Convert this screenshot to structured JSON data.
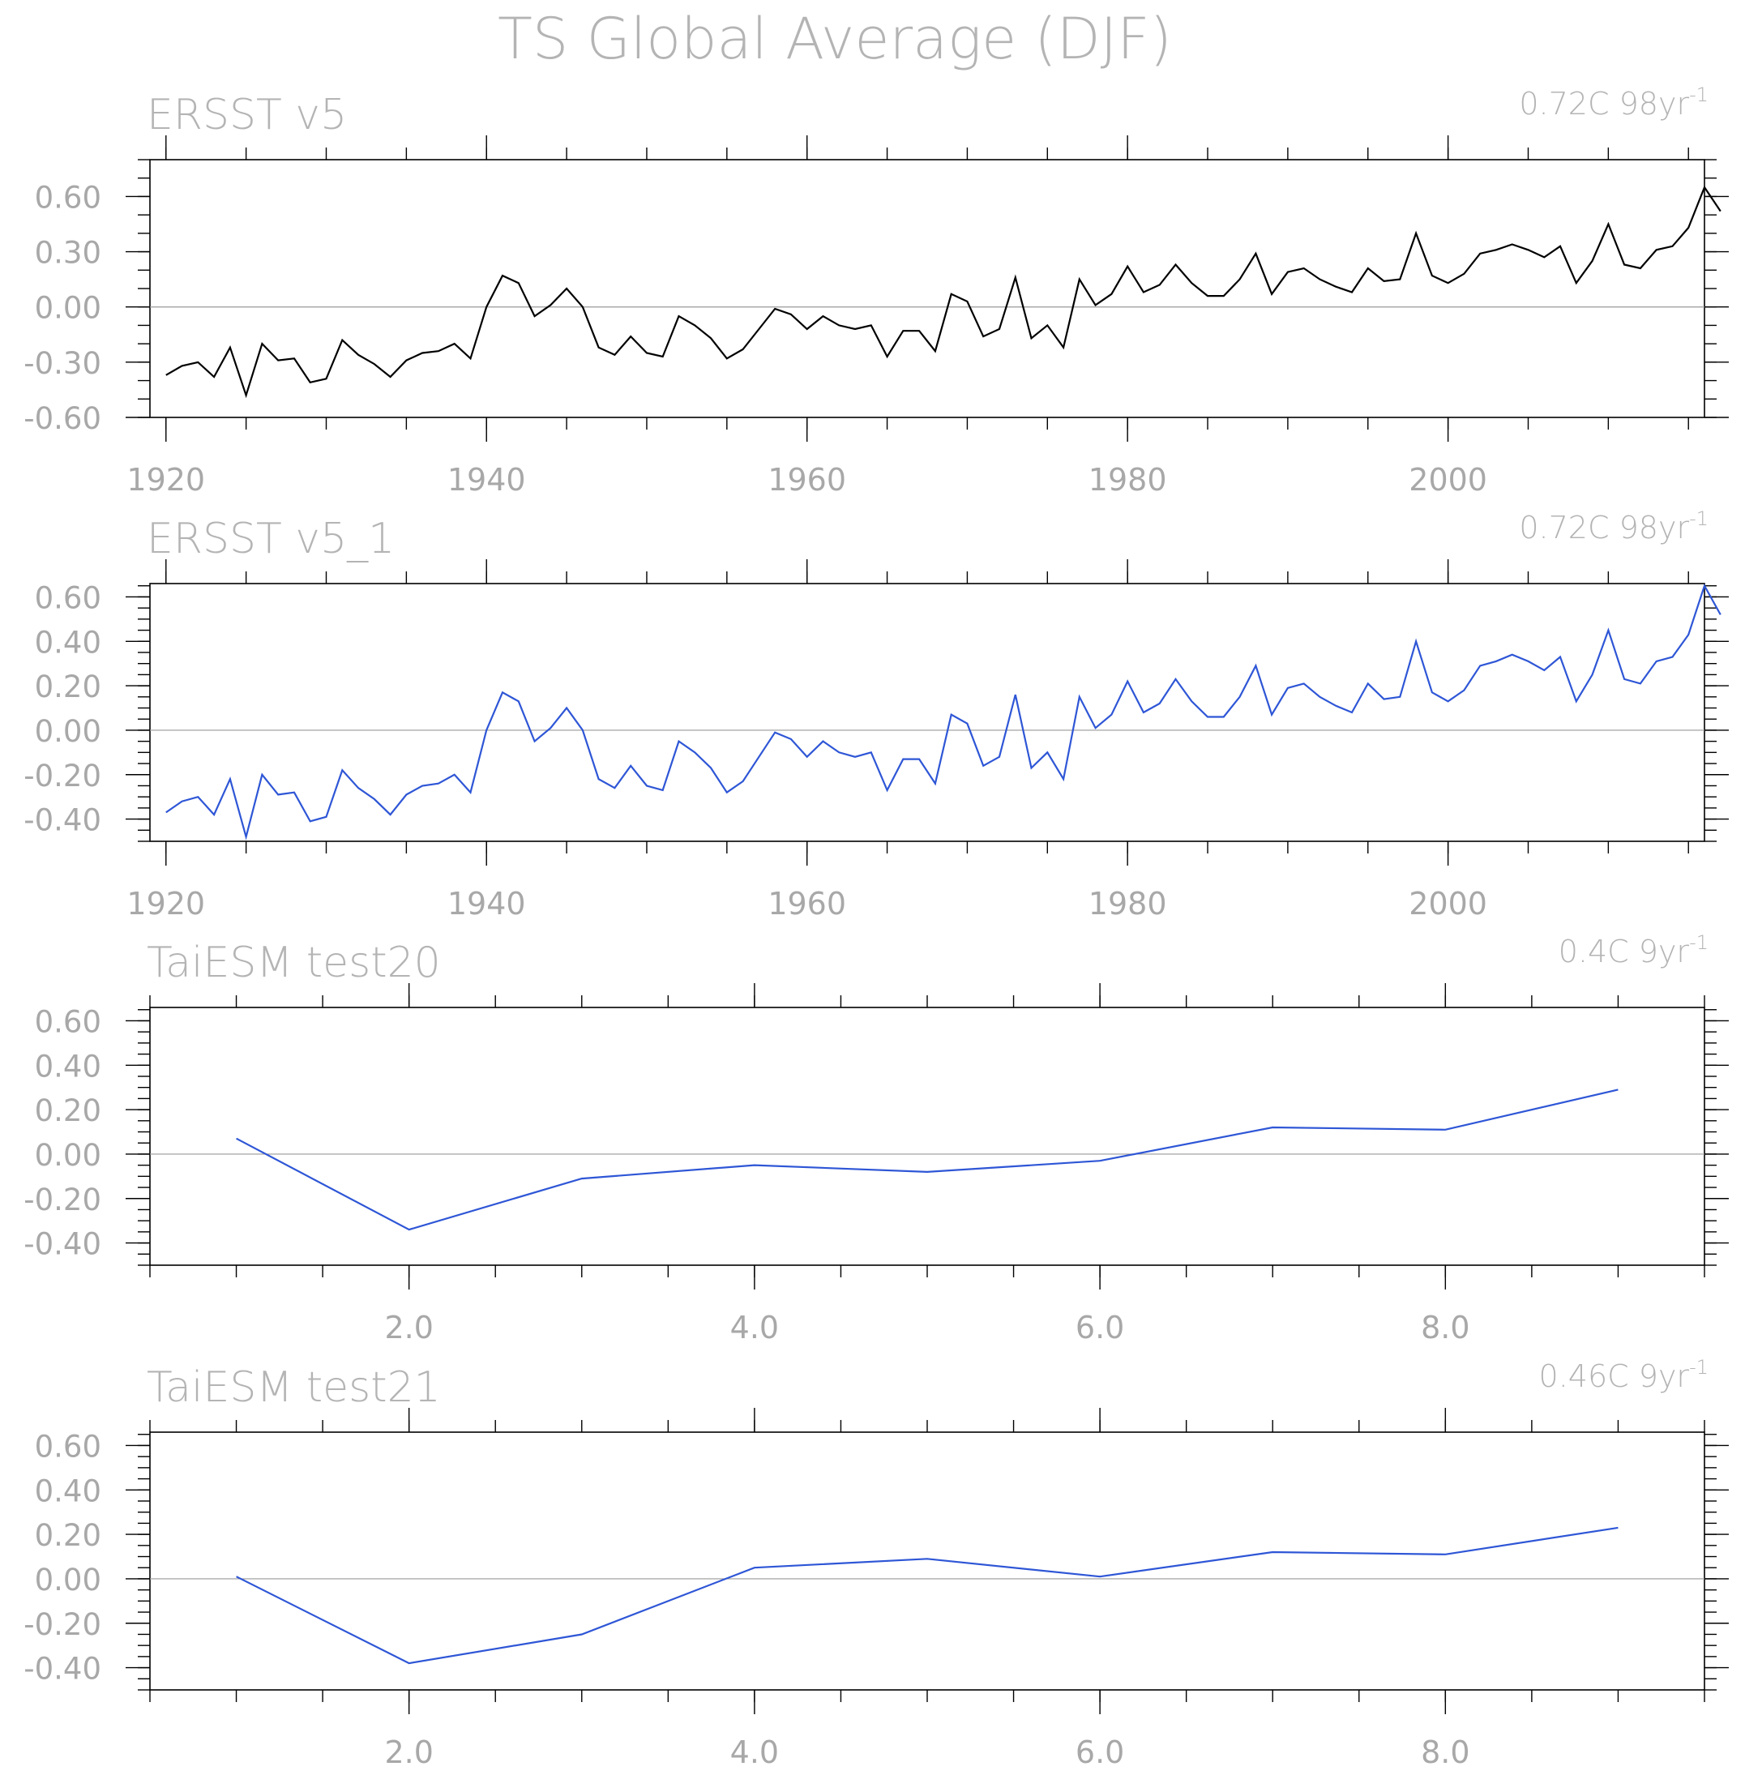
{
  "figure": {
    "title": "TS Global Average (DJF)"
  },
  "colors": {
    "black": "#000000",
    "blue": "#2e56d6",
    "zero": "#999999",
    "axis": "#000000",
    "text": "#a8a8a8"
  },
  "chart_data": [
    {
      "type": "line",
      "title": "ERSST v5",
      "annotation": "0.72C 98yr",
      "annotation_sup": "-1",
      "color": "black",
      "xlim": [
        1919,
        2016
      ],
      "ylim": [
        -0.6,
        0.8
      ],
      "yticks": [
        -0.6,
        -0.3,
        0.0,
        0.3,
        0.6
      ],
      "ytick_labels": [
        "-0.60",
        "-0.30",
        "0.00",
        "0.30",
        "0.60"
      ],
      "yminor": 0.1,
      "xticks": [
        1920,
        1940,
        1960,
        1980,
        2000
      ],
      "xtick_labels": [
        "1920",
        "1940",
        "1960",
        "1980",
        "2000"
      ],
      "xminor": 5,
      "zero_line": true,
      "series": [
        {
          "x_start": 1920,
          "x_step": 1,
          "values": [
            -0.37,
            -0.32,
            -0.3,
            -0.38,
            -0.22,
            -0.48,
            -0.2,
            -0.29,
            -0.28,
            -0.41,
            -0.39,
            -0.18,
            -0.26,
            -0.31,
            -0.38,
            -0.29,
            -0.25,
            -0.24,
            -0.2,
            -0.28,
            0.0,
            0.17,
            0.13,
            -0.05,
            0.01,
            0.1,
            0.0,
            -0.22,
            -0.26,
            -0.16,
            -0.25,
            -0.27,
            -0.05,
            -0.1,
            -0.17,
            -0.28,
            -0.23,
            -0.12,
            -0.01,
            -0.04,
            -0.12,
            -0.05,
            -0.1,
            -0.12,
            -0.1,
            -0.27,
            -0.13,
            -0.13,
            -0.24,
            0.07,
            0.03,
            -0.16,
            -0.12,
            0.16,
            -0.17,
            -0.1,
            -0.22,
            0.15,
            0.01,
            0.07,
            0.22,
            0.08,
            0.12,
            0.23,
            0.13,
            0.06,
            0.06,
            0.15,
            0.29,
            0.07,
            0.19,
            0.21,
            0.15,
            0.11,
            0.08,
            0.21,
            0.14,
            0.15,
            0.4,
            0.17,
            0.13,
            0.18,
            0.29,
            0.31,
            0.34,
            0.31,
            0.27,
            0.33,
            0.13,
            0.25,
            0.45,
            0.23,
            0.21,
            0.31,
            0.33,
            0.43,
            0.65,
            0.52
          ]
        }
      ]
    },
    {
      "type": "line",
      "title": "ERSST v5_1",
      "annotation": "0.72C 98yr",
      "annotation_sup": "-1",
      "color": "blue",
      "xlim": [
        1919,
        2016
      ],
      "ylim": [
        -0.5,
        0.66
      ],
      "yticks": [
        -0.4,
        -0.2,
        0.0,
        0.2,
        0.4,
        0.6
      ],
      "ytick_labels": [
        "-0.40",
        "-0.20",
        "0.00",
        "0.20",
        "0.40",
        "0.60"
      ],
      "yminor": 0.05,
      "xticks": [
        1920,
        1940,
        1960,
        1980,
        2000
      ],
      "xtick_labels": [
        "1920",
        "1940",
        "1960",
        "1980",
        "2000"
      ],
      "xminor": 5,
      "zero_line": true,
      "series": [
        {
          "x_start": 1920,
          "x_step": 1,
          "values": [
            -0.37,
            -0.32,
            -0.3,
            -0.38,
            -0.22,
            -0.48,
            -0.2,
            -0.29,
            -0.28,
            -0.41,
            -0.39,
            -0.18,
            -0.26,
            -0.31,
            -0.38,
            -0.29,
            -0.25,
            -0.24,
            -0.2,
            -0.28,
            0.0,
            0.17,
            0.13,
            -0.05,
            0.01,
            0.1,
            0.0,
            -0.22,
            -0.26,
            -0.16,
            -0.25,
            -0.27,
            -0.05,
            -0.1,
            -0.17,
            -0.28,
            -0.23,
            -0.12,
            -0.01,
            -0.04,
            -0.12,
            -0.05,
            -0.1,
            -0.12,
            -0.1,
            -0.27,
            -0.13,
            -0.13,
            -0.24,
            0.07,
            0.03,
            -0.16,
            -0.12,
            0.16,
            -0.17,
            -0.1,
            -0.22,
            0.15,
            0.01,
            0.07,
            0.22,
            0.08,
            0.12,
            0.23,
            0.13,
            0.06,
            0.06,
            0.15,
            0.29,
            0.07,
            0.19,
            0.21,
            0.15,
            0.11,
            0.08,
            0.21,
            0.14,
            0.15,
            0.4,
            0.17,
            0.13,
            0.18,
            0.29,
            0.31,
            0.34,
            0.31,
            0.27,
            0.33,
            0.13,
            0.25,
            0.45,
            0.23,
            0.21,
            0.31,
            0.33,
            0.43,
            0.65,
            0.52
          ]
        }
      ]
    },
    {
      "type": "line",
      "title": "TaiESM test20",
      "annotation": "0.4C 9yr",
      "annotation_sup": "-1",
      "color": "blue",
      "xlim": [
        0.5,
        9.5
      ],
      "ylim": [
        -0.5,
        0.66
      ],
      "yticks": [
        -0.4,
        -0.2,
        0.0,
        0.2,
        0.4,
        0.6
      ],
      "ytick_labels": [
        "-0.40",
        "-0.20",
        "0.00",
        "0.20",
        "0.40",
        "0.60"
      ],
      "yminor": 0.05,
      "xticks": [
        2,
        4,
        6,
        8
      ],
      "xtick_labels": [
        "2.0",
        "4.0",
        "6.0",
        "8.0"
      ],
      "xminor": 0.5,
      "zero_line": true,
      "series": [
        {
          "x_start": 1,
          "x_step": 1,
          "values": [
            0.07,
            -0.34,
            -0.11,
            -0.05,
            -0.08,
            -0.03,
            0.12,
            0.11,
            0.29
          ]
        }
      ]
    },
    {
      "type": "line",
      "title": "TaiESM test21",
      "annotation": "0.46C 9yr",
      "annotation_sup": "-1",
      "color": "blue",
      "xlim": [
        0.5,
        9.5
      ],
      "ylim": [
        -0.5,
        0.66
      ],
      "yticks": [
        -0.4,
        -0.2,
        0.0,
        0.2,
        0.4,
        0.6
      ],
      "ytick_labels": [
        "-0.40",
        "-0.20",
        "0.00",
        "0.20",
        "0.40",
        "0.60"
      ],
      "yminor": 0.05,
      "xticks": [
        2,
        4,
        6,
        8
      ],
      "xtick_labels": [
        "2.0",
        "4.0",
        "6.0",
        "8.0"
      ],
      "xminor": 0.5,
      "zero_line": true,
      "series": [
        {
          "x_start": 1,
          "x_step": 1,
          "values": [
            0.01,
            -0.38,
            -0.25,
            0.05,
            0.09,
            0.01,
            0.12,
            0.11,
            0.23
          ]
        }
      ]
    }
  ]
}
